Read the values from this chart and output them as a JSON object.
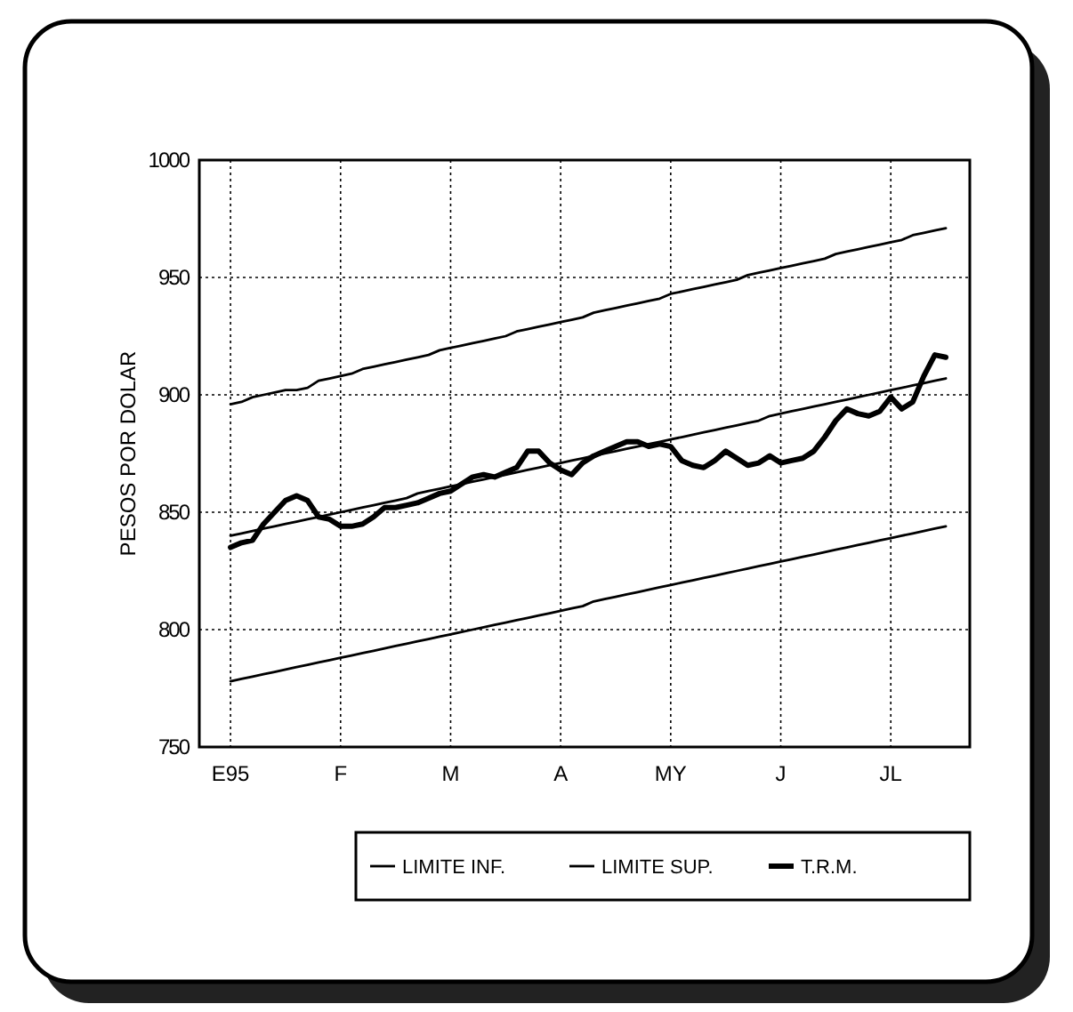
{
  "chart_data": {
    "type": "line",
    "ylabel": "PESOS POR DOLAR",
    "categories": [
      "E95",
      null,
      null,
      null,
      null,
      null,
      null,
      null,
      null,
      null,
      "F",
      null,
      null,
      null,
      null,
      null,
      null,
      null,
      null,
      null,
      "M",
      null,
      null,
      null,
      null,
      null,
      null,
      null,
      null,
      null,
      "A",
      null,
      null,
      null,
      null,
      null,
      null,
      null,
      null,
      null,
      "MY",
      null,
      null,
      null,
      null,
      null,
      null,
      null,
      null,
      null,
      "J",
      null,
      null,
      null,
      null,
      null,
      null,
      null,
      null,
      null,
      "JL",
      null,
      null,
      null,
      null,
      null
    ],
    "ylim": [
      750,
      1000
    ],
    "yticks": [
      750,
      800,
      850,
      900,
      950,
      1000
    ],
    "grid": true,
    "legend": "bottom",
    "line_style": "solid",
    "series": [
      {
        "name": "LIMITE INF.",
        "color": "#000000",
        "values": [
          778,
          779,
          780,
          781,
          782,
          783,
          784,
          785,
          786,
          787,
          788,
          789,
          790,
          791,
          792,
          793,
          794,
          795,
          796,
          797,
          798,
          799,
          800,
          801,
          802,
          803,
          804,
          805,
          806,
          807,
          808,
          809,
          810,
          812,
          813,
          814,
          815,
          816,
          817,
          818,
          819,
          820,
          821,
          822,
          823,
          824,
          825,
          826,
          827,
          828,
          829,
          830,
          831,
          832,
          833,
          834,
          835,
          836,
          837,
          838,
          839,
          840,
          841,
          842,
          843,
          844
        ]
      },
      {
        "name": "LIMITE SUP.",
        "color": "#000000",
        "values": [
          896,
          897,
          899,
          900,
          901,
          902,
          902,
          903,
          906,
          907,
          908,
          909,
          911,
          912,
          913,
          914,
          915,
          916,
          917,
          919,
          920,
          921,
          922,
          923,
          924,
          925,
          927,
          928,
          929,
          930,
          931,
          932,
          933,
          935,
          936,
          937,
          938,
          939,
          940,
          941,
          943,
          944,
          945,
          946,
          947,
          948,
          949,
          951,
          952,
          953,
          954,
          955,
          956,
          957,
          958,
          960,
          961,
          962,
          963,
          964,
          965,
          966,
          968,
          969,
          970,
          971
        ]
      },
      {
        "name": "T.R.M.",
        "color": "#000000",
        "values": [
          835,
          837,
          838,
          845,
          850,
          855,
          857,
          855,
          848,
          847,
          844,
          844,
          845,
          848,
          852,
          852,
          853,
          854,
          856,
          858,
          859,
          862,
          865,
          866,
          865,
          867,
          869,
          876,
          876,
          871,
          868,
          866,
          871,
          874,
          876,
          878,
          880,
          880,
          878,
          879,
          878,
          872,
          870,
          869,
          872,
          876,
          873,
          870,
          871,
          874,
          871,
          872,
          873,
          876,
          882,
          889,
          894,
          892,
          891,
          893,
          899,
          894,
          897,
          908,
          917,
          916
        ]
      },
      {
        "color": "#000000",
        "values": [
          840,
          841,
          842,
          843,
          844,
          845,
          846,
          847,
          848,
          849,
          850,
          851,
          852,
          853,
          854,
          855,
          856,
          858,
          859,
          860,
          861,
          862,
          863,
          864,
          865,
          866,
          867,
          868,
          869,
          870,
          871,
          872,
          873,
          874,
          875,
          876,
          877,
          878,
          879,
          880,
          881,
          882,
          883,
          884,
          885,
          886,
          887,
          888,
          889,
          891,
          892,
          893,
          894,
          895,
          896,
          897,
          898,
          899,
          900,
          901,
          902,
          903,
          904,
          905,
          906,
          907
        ]
      }
    ]
  }
}
